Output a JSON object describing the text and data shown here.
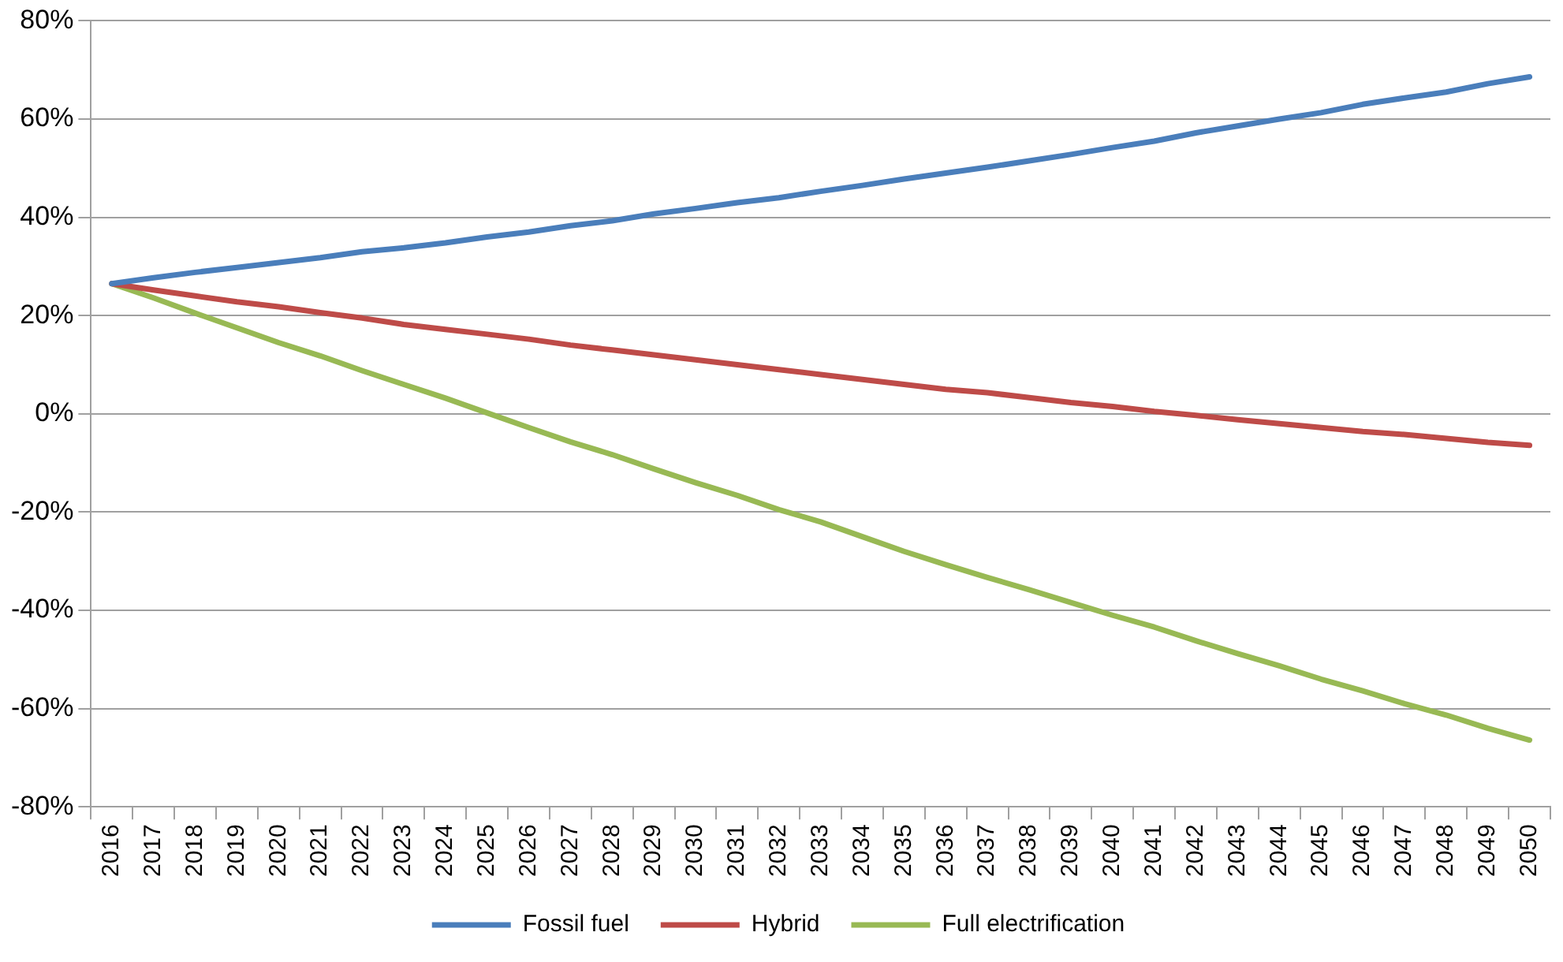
{
  "chart_data": {
    "type": "line",
    "categories": [
      "2016",
      "2017",
      "2018",
      "2019",
      "2020",
      "2021",
      "2022",
      "2023",
      "2024",
      "2025",
      "2026",
      "2027",
      "2028",
      "2029",
      "2030",
      "2031",
      "2032",
      "2033",
      "2034",
      "2035",
      "2036",
      "2037",
      "2038",
      "2039",
      "2040",
      "2041",
      "2042",
      "2043",
      "2044",
      "2045",
      "2046",
      "2047",
      "2048",
      "2049",
      "2050"
    ],
    "series": [
      {
        "name": "Fossil fuel",
        "color": "#4a7ebb",
        "values": [
          26.5,
          27.7,
          28.8,
          29.8,
          30.8,
          31.8,
          33,
          33.8,
          34.8,
          36,
          37,
          38.3,
          39.3,
          40.7,
          41.8,
          43,
          44,
          45.3,
          46.5,
          47.8,
          49,
          50.2,
          51.5,
          52.8,
          54.2,
          55.5,
          57.2,
          58.6,
          60,
          61.3,
          63,
          64.3,
          65.5,
          67.2,
          68.6
        ]
      },
      {
        "name": "Hybrid",
        "color": "#be4b48",
        "values": [
          26.5,
          25.2,
          24,
          22.8,
          21.8,
          20.6,
          19.5,
          18.2,
          17.2,
          16.2,
          15.2,
          14,
          13,
          12,
          11,
          10,
          9,
          8,
          7,
          6,
          5,
          4.3,
          3.3,
          2.3,
          1.5,
          0.5,
          -0.3,
          -1.2,
          -2,
          -2.8,
          -3.6,
          -4.2,
          -5,
          -5.8,
          -6.4
        ]
      },
      {
        "name": "Full electrification",
        "color": "#98b954",
        "values": [
          26.5,
          23.6,
          20.5,
          17.5,
          14.5,
          11.8,
          8.8,
          6,
          3.2,
          0.2,
          -2.8,
          -5.7,
          -8.3,
          -11.2,
          -14,
          -16.6,
          -19.5,
          -22,
          -25,
          -28,
          -30.7,
          -33.3,
          -35.8,
          -38.4,
          -41,
          -43.4,
          -46.2,
          -48.8,
          -51.3,
          -54,
          -56.4,
          -59,
          -61.3,
          -64,
          -66.4
        ]
      }
    ],
    "ylim": [
      -80,
      80
    ],
    "yticks": [
      {
        "value": -80,
        "label": "-80%"
      },
      {
        "value": -60,
        "label": "-60%"
      },
      {
        "value": -40,
        "label": "-40%"
      },
      {
        "value": -20,
        "label": "-20%"
      },
      {
        "value": 0,
        "label": "0%"
      },
      {
        "value": 20,
        "label": "20%"
      },
      {
        "value": 40,
        "label": "40%"
      },
      {
        "value": 60,
        "label": "60%"
      },
      {
        "value": 80,
        "label": "80%"
      }
    ],
    "grid": "y",
    "legend": "bottom",
    "marker": "none",
    "line_style": "solid"
  }
}
